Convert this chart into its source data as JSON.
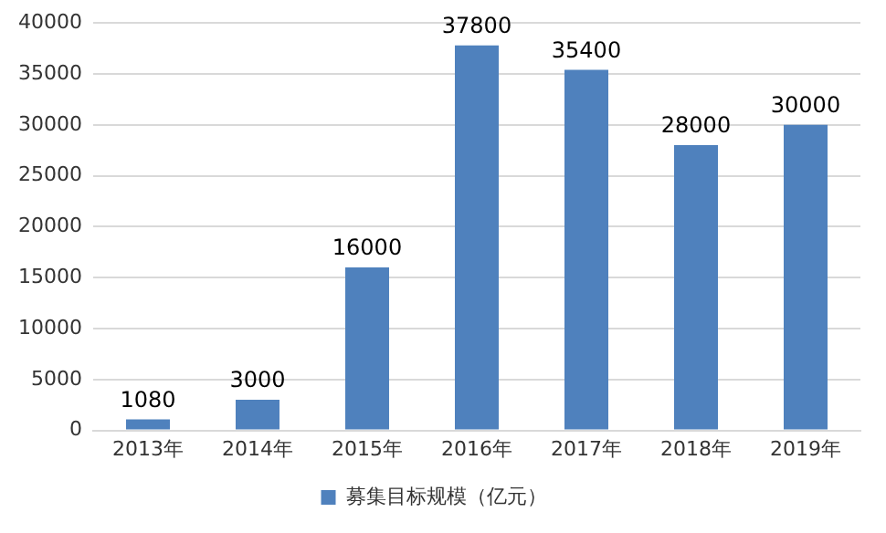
{
  "chart_data": {
    "type": "bar",
    "categories": [
      "2013年",
      "2014年",
      "2015年",
      "2016年",
      "2017年",
      "2018年",
      "2019年"
    ],
    "series": [
      {
        "name": "募集目标规模（亿元）",
        "color": "#4f81bd",
        "values": [
          1080,
          3000,
          16000,
          37800,
          35400,
          28000,
          30000
        ]
      }
    ],
    "ylim": [
      0,
      40000
    ],
    "yticks": [
      0,
      5000,
      10000,
      15000,
      20000,
      25000,
      30000,
      35000,
      40000
    ],
    "grid": "y",
    "legend": "bottom",
    "data_labels": true
  }
}
